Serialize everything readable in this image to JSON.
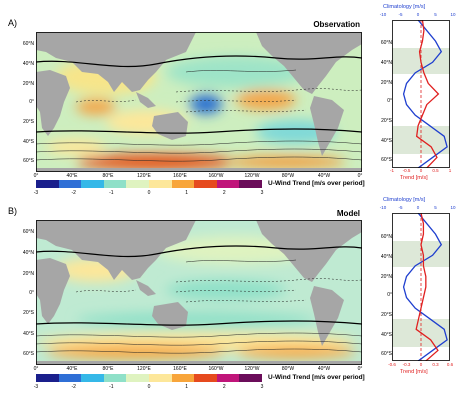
{
  "panels": [
    {
      "label": "A)",
      "title": "Observation",
      "lat_ticks": [
        "60°N",
        "40°N",
        "20°N",
        "0°",
        "20°S",
        "40°S",
        "60°S"
      ],
      "lon_ticks": [
        "0°",
        "40°E",
        "80°E",
        "120°E",
        "160°E",
        "160°W",
        "120°W",
        "80°W",
        "40°W",
        "0°"
      ],
      "colorbar": {
        "title": "U-Wind Trend [m/s over period]",
        "ticks": [
          "-3",
          "-2",
          "-1",
          "0",
          "1",
          "2",
          "3"
        ],
        "colors": [
          "#1a1f8c",
          "#2f6fd6",
          "#35b8e8",
          "#8fe0c8",
          "#dff3c0",
          "#fde79a",
          "#f8a53a",
          "#e64a1e",
          "#c0157a",
          "#6b0d5a"
        ]
      },
      "profile": {
        "top_label": "Climatology [m/s]",
        "top_ticks": [
          "-10",
          "-5",
          "0",
          "5",
          "10"
        ],
        "bottom_label": "Trend [m/s]",
        "bottom_ticks": [
          "-1",
          "-0.5",
          "0",
          "0.5",
          "1"
        ],
        "lat_ticks": [
          "60°N",
          "40°N",
          "20°N",
          "0°",
          "20°S",
          "40°S",
          "60°S"
        ]
      }
    },
    {
      "label": "B)",
      "title": "Model",
      "lat_ticks": [
        "60°N",
        "40°N",
        "20°N",
        "0°",
        "20°S",
        "40°S",
        "60°S"
      ],
      "lon_ticks": [
        "0°",
        "40°E",
        "80°E",
        "120°E",
        "160°E",
        "160°W",
        "120°W",
        "80°W",
        "40°W",
        "0°"
      ],
      "colorbar": {
        "title": "U-Wind Trend [m/s over period]",
        "ticks": [
          "-3",
          "-2",
          "-1",
          "0",
          "1",
          "2",
          "3"
        ],
        "colors": [
          "#1a1f8c",
          "#2f6fd6",
          "#35b8e8",
          "#8fe0c8",
          "#dff3c0",
          "#fde79a",
          "#f8a53a",
          "#e64a1e",
          "#c0157a",
          "#6b0d5a"
        ]
      },
      "profile": {
        "top_label": "Climatology [m/s]",
        "top_ticks": [
          "-10",
          "-5",
          "0",
          "5",
          "10"
        ],
        "bottom_label": "Trend [m/s]",
        "bottom_ticks": [
          "-0.6",
          "-0.3",
          "0",
          "0.3",
          "0.6"
        ],
        "lat_ticks": [
          "60°N",
          "40°N",
          "20°N",
          "0°",
          "20°S",
          "40°S",
          "60°S"
        ]
      }
    }
  ],
  "chart_data": [
    {
      "type": "heatmap",
      "title": "Observation",
      "colorbar_label": "U-Wind Trend [m/s over period]",
      "colorbar_range": [
        -3,
        3
      ],
      "x_range": [
        "0°",
        "0°"
      ],
      "y_range": [
        "70°S",
        "70°N"
      ]
    },
    {
      "type": "line",
      "title": "",
      "top_axis": {
        "label": "Climatology [m/s]",
        "range": [
          -10,
          10
        ]
      },
      "bottom_axis": {
        "label": "Trend [m/s]",
        "range": [
          -1,
          1
        ]
      },
      "series": [
        {
          "color": "#1f3fcf",
          "lat": [
            70,
            60,
            50,
            40,
            30,
            20,
            10,
            0,
            -10,
            -20,
            -30,
            -40,
            -50,
            -60,
            -70
          ],
          "values": [
            -1,
            2,
            5,
            7,
            4,
            -2,
            -5,
            -6,
            -5,
            -2,
            3,
            8,
            9,
            4,
            -1
          ]
        },
        {
          "color": "#e02020",
          "lat": [
            70,
            60,
            50,
            40,
            30,
            20,
            10,
            0,
            -10,
            -20,
            -30,
            -40,
            -50,
            -60,
            -70
          ],
          "values": [
            0.05,
            0.1,
            0.05,
            -0.05,
            0.0,
            0.1,
            0.25,
            0.6,
            0.2,
            0.05,
            -0.1,
            -0.15,
            0.35,
            0.55,
            0.2
          ]
        }
      ]
    },
    {
      "type": "heatmap",
      "title": "Model",
      "colorbar_label": "U-Wind Trend [m/s over period]",
      "colorbar_range": [
        -3,
        3
      ],
      "x_range": [
        "0°",
        "0°"
      ],
      "y_range": [
        "70°S",
        "70°N"
      ]
    },
    {
      "type": "line",
      "title": "",
      "top_axis": {
        "label": "Climatology [m/s]",
        "range": [
          -10,
          10
        ]
      },
      "bottom_axis": {
        "label": "Trend [m/s]",
        "range": [
          -0.6,
          0.6
        ]
      },
      "series": [
        {
          "color": "#1f3fcf",
          "lat": [
            70,
            60,
            50,
            40,
            30,
            20,
            10,
            0,
            -10,
            -20,
            -30,
            -40,
            -50,
            -60,
            -70
          ],
          "values": [
            -1,
            2,
            5,
            7,
            4,
            -2,
            -5,
            -6,
            -5,
            -2,
            3,
            8,
            9,
            4,
            -1
          ]
        },
        {
          "color": "#e02020",
          "lat": [
            70,
            60,
            50,
            40,
            30,
            20,
            10,
            0,
            -10,
            -20,
            -30,
            -40,
            -50,
            -60,
            -70
          ],
          "values": [
            0.0,
            0.05,
            0.05,
            0.0,
            0.05,
            0.05,
            0.1,
            0.1,
            0.05,
            0.0,
            -0.05,
            -0.1,
            0.2,
            0.35,
            0.1
          ]
        }
      ]
    }
  ]
}
